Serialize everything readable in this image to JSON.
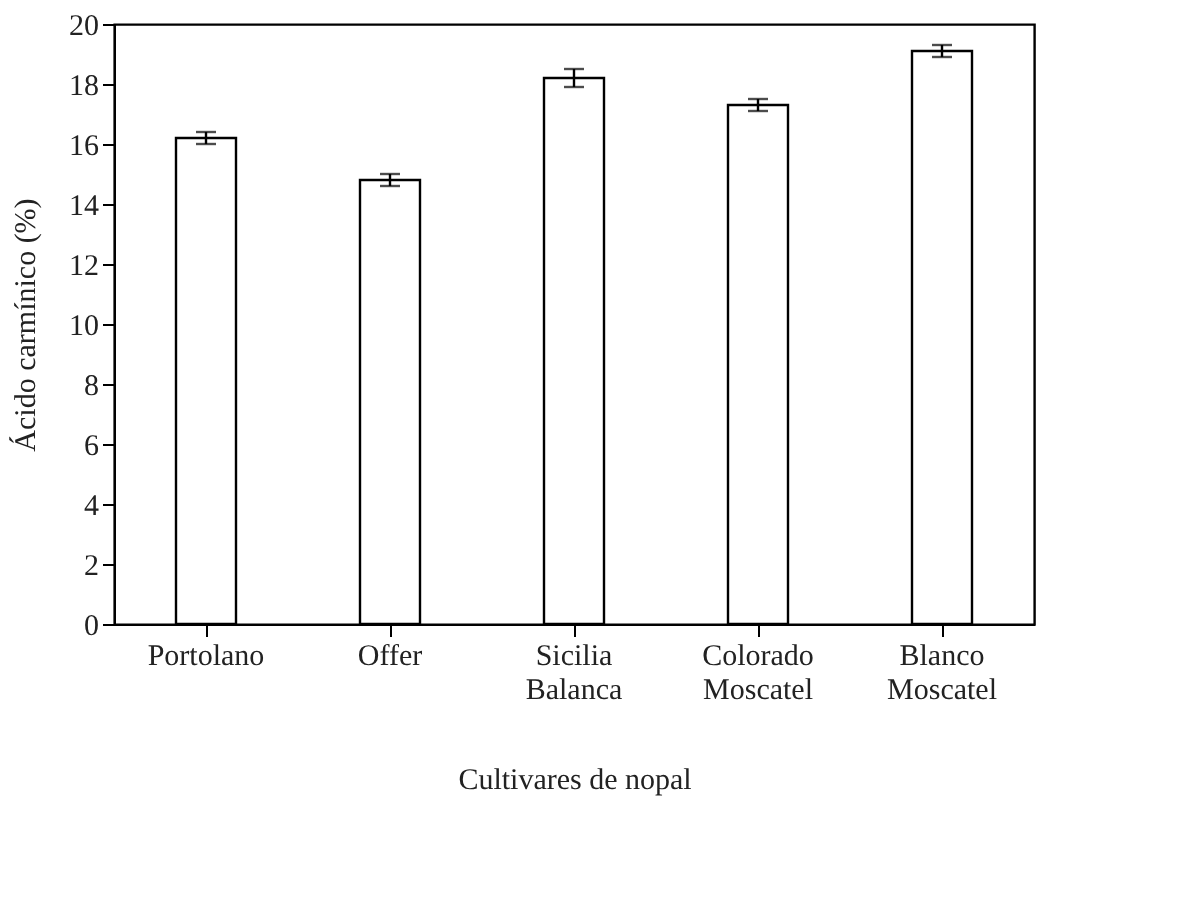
{
  "chart_data": {
    "type": "bar",
    "xlabel": "Cultivares de nopal",
    "ylabel": "Ácido carmínico (%)",
    "categories": [
      "Portolano",
      "Offer",
      "Sicilia Balanca",
      "Colorado Moscatel",
      "Blanco Moscatel"
    ],
    "values": [
      16.2,
      14.8,
      18.2,
      17.3,
      19.1
    ],
    "errors": [
      0.2,
      0.2,
      0.3,
      0.2,
      0.2
    ],
    "color": "#ffffff",
    "ylim": [
      0,
      20
    ],
    "yticks": [
      0,
      2,
      4,
      6,
      8,
      10,
      12,
      14,
      16,
      18,
      20
    ],
    "grid": false
  }
}
